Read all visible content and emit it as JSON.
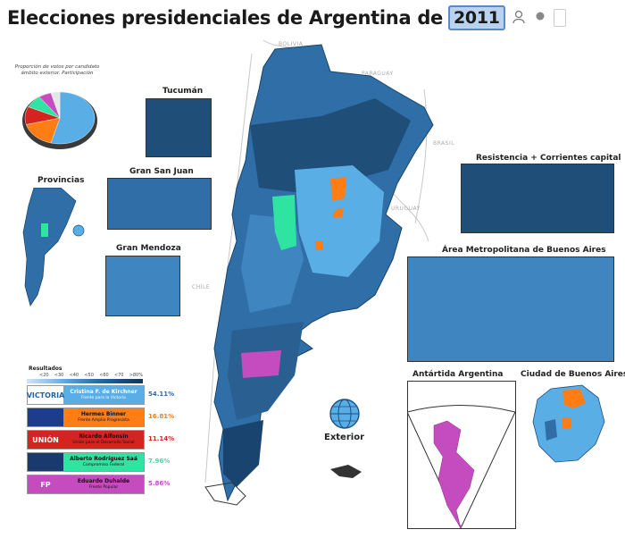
{
  "title": {
    "text": "Elecciones presidenciales de Argentina de",
    "year": "2011"
  },
  "controls": {
    "person_icon": "person-icon",
    "dot_icon": "record-dot-icon"
  },
  "pie": {
    "caption_line1": "Proporción de votos por candidato",
    "caption_line2": "ámbito exterior. Participación",
    "slices": [
      {
        "value": 54.11,
        "color": "#5aaee6"
      },
      {
        "value": 16.81,
        "color": "#ff7d14"
      },
      {
        "value": 11.14,
        "color": "#d3241f"
      },
      {
        "value": 7.96,
        "color": "#2fe3a0"
      },
      {
        "value": 5.86,
        "color": "#c44cbf"
      },
      {
        "value": 4.12,
        "color": "#e6e6e6"
      }
    ]
  },
  "countries": {
    "bolivia": "BOLIVIA",
    "paraguay": "PARAGUAY",
    "brasil": "BRASIL",
    "uruguay": "URUGUAY",
    "chile": "CHILE"
  },
  "insets": {
    "tucuman": "Tucumán",
    "san_juan": "Gran San Juan",
    "mendoza": "Gran Mendoza",
    "provincias": "Provincias",
    "resistencia": "Resistencia + Corrientes capital",
    "amba": "Área Metropolitana de Buenos Aires",
    "antartida": "Antártida Argentina",
    "caba": "Ciudad de Buenos Aires",
    "exterior": "Exterior"
  },
  "results": {
    "title": "Resultados",
    "scale": [
      "<20",
      "<30",
      "<40",
      "<50",
      "<60",
      "<70",
      ">80%"
    ]
  },
  "candidates": [
    {
      "logo": "VICTORIA",
      "name": "Cristina F. de Kirchner",
      "party": "Frente para la Victoria",
      "pct": "54.11%",
      "color": "#5aaee6",
      "logo_bg": "#ffffff",
      "logo_color": "#1d63a8"
    },
    {
      "logo": "",
      "name": "Hermes Binner",
      "party": "Frente Amplio Progresista",
      "pct": "16.81%",
      "color": "#ff7d14",
      "logo_bg": "#1e3c8c",
      "logo_color": "#ff7d14"
    },
    {
      "logo": "UNIÓN",
      "name": "Ricardo Alfonsín",
      "party": "Unión para el Desarrollo Social",
      "pct": "11.14%",
      "color": "#d3241f",
      "logo_bg": "#d3241f",
      "logo_color": "#ffffff"
    },
    {
      "logo": "",
      "name": "Alberto Rodríguez Saá",
      "party": "Compromiso Federal",
      "pct": "7.96%",
      "color": "#2fe3a0",
      "logo_bg": "#1a3a6e",
      "logo_color": "#ffffff"
    },
    {
      "logo": "FP",
      "name": "Eduardo Duhalde",
      "party": "Frente Popular",
      "pct": "5.86%",
      "color": "#c44cbf",
      "logo_bg": "#c44cbf",
      "logo_color": "#ffffff"
    }
  ]
}
